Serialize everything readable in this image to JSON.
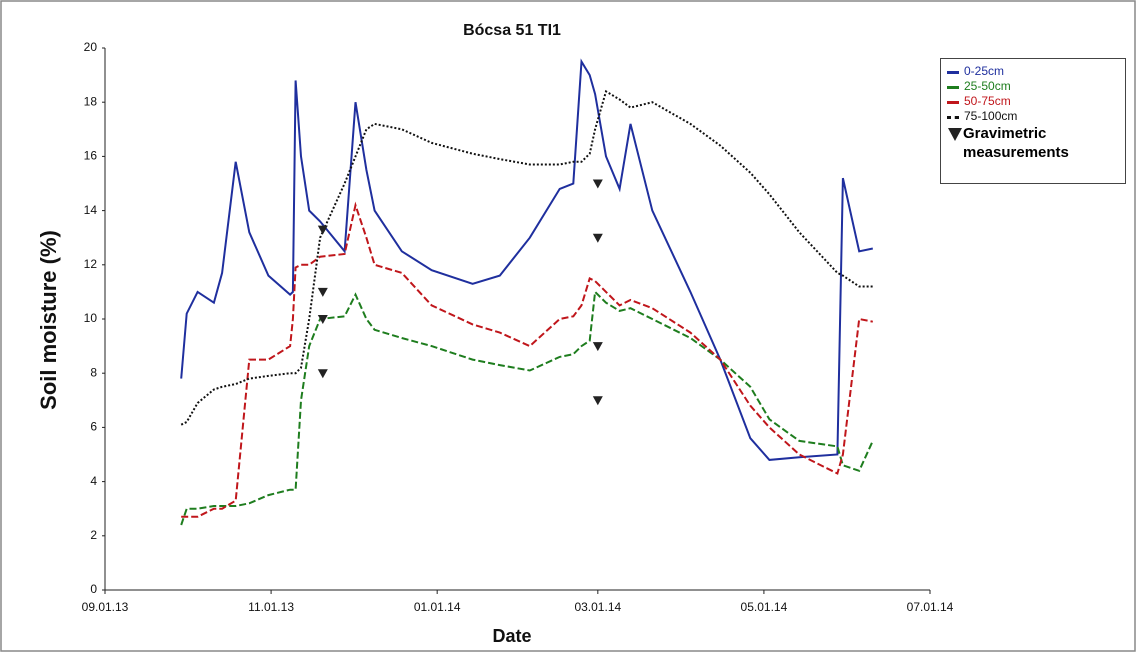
{
  "chart_data": {
    "type": "line",
    "title": "Bócsa 51 TI1",
    "x_label": "Date",
    "y_label": "Soil moisture (%)",
    "x": [
      "2013-09-29",
      "2013-10-01",
      "2013-10-05",
      "2013-10-11",
      "2013-10-14",
      "2013-10-19",
      "2013-10-24",
      "2013-10-31",
      "2013-11-08",
      "2013-11-09",
      "2013-11-10",
      "2013-11-12",
      "2013-11-15",
      "2013-11-19",
      "2013-11-28",
      "2013-12-02",
      "2013-12-06",
      "2013-12-09",
      "2013-12-19",
      "2013-12-30",
      "2014-01-14",
      "2014-01-24",
      "2014-02-04",
      "2014-02-15",
      "2014-02-20",
      "2014-02-23",
      "2014-02-26",
      "2014-02-28",
      "2014-03-04",
      "2014-03-09",
      "2014-03-13",
      "2014-03-21",
      "2014-04-04",
      "2014-04-15",
      "2014-04-26",
      "2014-05-03",
      "2014-05-14",
      "2014-05-28",
      "2014-05-30",
      "2014-06-05",
      "2014-06-10"
    ],
    "series": [
      {
        "name": "0-25cm",
        "color": "#1f2f9e",
        "style": "solid",
        "values": [
          7.8,
          10.2,
          11,
          10.6,
          11.7,
          15.8,
          13.2,
          11.6,
          10.9,
          11,
          18.8,
          16,
          14,
          13.6,
          12.5,
          18,
          15.5,
          14,
          12.5,
          11.8,
          11.3,
          11.6,
          13,
          14.8,
          15,
          19.5,
          19,
          18.3,
          16,
          14.8,
          17.2,
          14,
          11,
          8.5,
          5.6,
          4.8,
          4.9,
          5,
          15.2,
          12.5,
          12.6
        ]
      },
      {
        "name": "25-50cm",
        "color": "#1e7d1e",
        "style": "dashed",
        "values": [
          2.4,
          3,
          3,
          3.1,
          3.1,
          3.1,
          3.2,
          3.5,
          3.7,
          3.7,
          3.7,
          7,
          9,
          10,
          10.1,
          10.9,
          10,
          9.6,
          9.3,
          9,
          8.5,
          8.3,
          8.1,
          8.6,
          8.7,
          9,
          9.2,
          11,
          10.6,
          10.3,
          10.4,
          10,
          9.3,
          8.5,
          7.5,
          6.3,
          5.5,
          5.3,
          4.6,
          4.4,
          5.5
        ]
      },
      {
        "name": "50-75cm",
        "color": "#c0161b",
        "style": "dashed",
        "values": [
          2.7,
          2.7,
          2.7,
          3,
          3,
          3.3,
          8.5,
          8.5,
          9,
          10,
          11.9,
          12,
          12,
          12.3,
          12.4,
          14.2,
          13,
          12,
          11.7,
          10.5,
          9.8,
          9.5,
          9,
          10,
          10.1,
          10.5,
          11.5,
          11.4,
          11,
          10.5,
          10.7,
          10.4,
          9.5,
          8.5,
          6.8,
          6,
          5,
          4.3,
          5,
          10,
          9.9
        ]
      },
      {
        "name": "75-100cm",
        "color": "#111111",
        "style": "dotted",
        "values": [
          6.1,
          6.2,
          6.9,
          7.4,
          7.5,
          7.6,
          7.8,
          7.9,
          8,
          8,
          8,
          8.2,
          10,
          13,
          15,
          16,
          17,
          17.2,
          17,
          16.5,
          16.1,
          15.9,
          15.7,
          15.7,
          15.8,
          15.8,
          16.1,
          17,
          18.4,
          18.1,
          17.8,
          18,
          17.2,
          16.4,
          15.4,
          14.6,
          13.2,
          11.7,
          11.6,
          11.2,
          11.2
        ]
      }
    ],
    "markers": {
      "name": "Gravimetric measurements",
      "color": "#222222",
      "x": [
        "2013-11-20",
        "2013-11-20",
        "2013-11-20",
        "2013-11-20",
        "2014-03-01",
        "2014-03-01",
        "2014-03-01",
        "2014-03-01"
      ],
      "values": [
        13.3,
        11,
        10,
        8,
        15,
        13,
        9,
        7
      ]
    },
    "xlim": [
      "2013-09-01",
      "2014-07-01"
    ],
    "xticks": [
      {
        "value": "2013-09-01",
        "label": "09.01.13"
      },
      {
        "value": "2013-11-01",
        "label": "11.01.13"
      },
      {
        "value": "2014-01-01",
        "label": "01.01.14"
      },
      {
        "value": "2014-03-01",
        "label": "03.01.14"
      },
      {
        "value": "2014-05-01",
        "label": "05.01.14"
      },
      {
        "value": "2014-07-01",
        "label": "07.01.14"
      }
    ],
    "ylim": [
      0,
      20
    ],
    "yticks": [
      0,
      2,
      4,
      6,
      8,
      10,
      12,
      14,
      16,
      18,
      20
    ],
    "grid": false,
    "legend": "upper right"
  }
}
